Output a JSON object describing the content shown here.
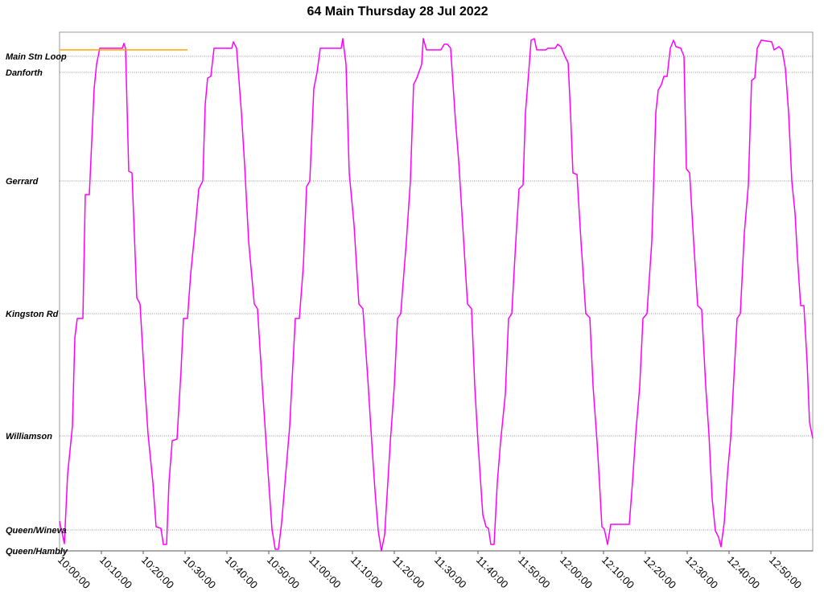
{
  "chart_data": {
    "type": "line",
    "title": "64 Main Thursday 28 Jul 2022",
    "xlim": [
      "10:00:00",
      "13:00:00"
    ],
    "xticks": [
      "10:00:00",
      "10:10:00",
      "10:20:00",
      "10:30:00",
      "10:40:00",
      "10:50:00",
      "11:00:00",
      "11:10:00",
      "11:20:00",
      "11:30:00",
      "11:40:00",
      "11:50:00",
      "12:00:00",
      "12:10:00",
      "12:20:00",
      "12:30:00",
      "12:40:00",
      "12:50:00"
    ],
    "ylim": [
      0,
      6.45
    ],
    "grid": true,
    "stops": [
      {
        "name": "Main Stn Loop",
        "y": 6.15
      },
      {
        "name": "Danforth",
        "y": 5.95
      },
      {
        "name": "Gerrard",
        "y": 4.6
      },
      {
        "name": "Kingston Rd",
        "y": 2.95
      },
      {
        "name": "Williamson",
        "y": 1.43
      },
      {
        "name": "Queen/Wineva",
        "y": 0.26
      },
      {
        "name": "Queen/Hambly",
        "y": 0.0
      }
    ],
    "series": [
      {
        "color": "#ff00ff",
        "points": [
          [
            "10:00:00",
            0.37
          ],
          [
            "10:01:09",
            0.09
          ],
          [
            "10:01:55",
            0.95
          ],
          [
            "10:03:05",
            1.55
          ],
          [
            "10:03:39",
            2.65
          ],
          [
            "10:04:14",
            2.89
          ],
          [
            "10:05:35",
            2.89
          ],
          [
            "10:06:09",
            4.43
          ],
          [
            "10:07:07",
            4.43
          ],
          [
            "10:08:16",
            5.75
          ],
          [
            "10:08:51",
            6.05
          ],
          [
            "10:09:37",
            6.25
          ],
          [
            "10:15:00",
            6.25
          ],
          [
            "10:15:23",
            6.31
          ],
          [
            "10:15:46",
            6.25
          ],
          [
            "10:16:32",
            4.72
          ],
          [
            "10:17:18",
            4.7
          ],
          [
            "10:18:28",
            3.15
          ],
          [
            "10:19:14",
            3.07
          ],
          [
            "10:20:23",
            2.05
          ],
          [
            "10:21:09",
            1.45
          ],
          [
            "10:22:18",
            0.85
          ],
          [
            "10:23:05",
            0.3
          ],
          [
            "10:24:14",
            0.28
          ],
          [
            "10:24:48",
            0.08
          ],
          [
            "10:25:35",
            0.08
          ],
          [
            "10:26:09",
            0.85
          ],
          [
            "10:26:55",
            1.37
          ],
          [
            "10:28:05",
            1.39
          ],
          [
            "10:29:02",
            2.25
          ],
          [
            "10:29:37",
            2.89
          ],
          [
            "10:30:35",
            2.89
          ],
          [
            "10:31:21",
            3.45
          ],
          [
            "10:32:30",
            4.05
          ],
          [
            "10:33:16",
            4.5
          ],
          [
            "10:34:14",
            4.6
          ],
          [
            "10:34:48",
            5.55
          ],
          [
            "10:35:23",
            5.88
          ],
          [
            "10:36:09",
            5.9
          ],
          [
            "10:36:55",
            6.25
          ],
          [
            "10:41:09",
            6.25
          ],
          [
            "10:41:32",
            6.33
          ],
          [
            "10:42:18",
            6.25
          ],
          [
            "10:43:28",
            5.45
          ],
          [
            "10:44:14",
            4.8
          ],
          [
            "10:45:12",
            3.85
          ],
          [
            "10:46:32",
            3.07
          ],
          [
            "10:47:18",
            3.01
          ],
          [
            "10:48:28",
            2.05
          ],
          [
            "10:49:14",
            1.45
          ],
          [
            "10:50:00",
            0.85
          ],
          [
            "10:50:46",
            0.27
          ],
          [
            "10:51:32",
            0.02
          ],
          [
            "10:52:18",
            0.02
          ],
          [
            "10:53:05",
            0.35
          ],
          [
            "10:54:02",
            0.95
          ],
          [
            "10:55:00",
            1.55
          ],
          [
            "10:56:21",
            2.89
          ],
          [
            "10:57:18",
            2.89
          ],
          [
            "10:58:16",
            3.55
          ],
          [
            "10:59:02",
            4.53
          ],
          [
            "10:59:48",
            4.6
          ],
          [
            "11:00:46",
            5.75
          ],
          [
            "11:01:32",
            5.95
          ],
          [
            "11:02:18",
            6.25
          ],
          [
            "11:07:18",
            6.25
          ],
          [
            "11:07:42",
            6.37
          ],
          [
            "11:08:28",
            6.05
          ],
          [
            "11:09:14",
            4.7
          ],
          [
            "11:10:23",
            4.05
          ],
          [
            "11:11:32",
            3.07
          ],
          [
            "11:12:30",
            3.01
          ],
          [
            "11:13:39",
            2.15
          ],
          [
            "11:14:37",
            1.35
          ],
          [
            "11:15:23",
            0.75
          ],
          [
            "11:16:09",
            0.25
          ],
          [
            "11:16:55",
            0.0
          ],
          [
            "11:17:42",
            0.2
          ],
          [
            "11:19:02",
            1.35
          ],
          [
            "11:20:00",
            2.05
          ],
          [
            "11:20:46",
            2.89
          ],
          [
            "11:21:32",
            2.95
          ],
          [
            "11:22:53",
            3.85
          ],
          [
            "11:23:51",
            4.6
          ],
          [
            "11:24:37",
            5.8
          ],
          [
            "11:25:23",
            5.88
          ],
          [
            "11:26:32",
            6.05
          ],
          [
            "11:26:55",
            6.37
          ],
          [
            "11:27:42",
            6.23
          ],
          [
            "11:31:09",
            6.23
          ],
          [
            "11:31:55",
            6.3
          ],
          [
            "11:32:42",
            6.3
          ],
          [
            "11:33:28",
            6.25
          ],
          [
            "11:34:37",
            5.35
          ],
          [
            "11:35:23",
            4.85
          ],
          [
            "11:36:21",
            4.05
          ],
          [
            "11:37:30",
            3.07
          ],
          [
            "11:38:28",
            3.01
          ],
          [
            "11:39:14",
            2.05
          ],
          [
            "11:40:00",
            1.35
          ],
          [
            "11:41:09",
            0.45
          ],
          [
            "11:41:55",
            0.3
          ],
          [
            "11:42:30",
            0.28
          ],
          [
            "11:43:05",
            0.08
          ],
          [
            "11:43:51",
            0.08
          ],
          [
            "11:44:37",
            0.85
          ],
          [
            "11:45:23",
            1.35
          ],
          [
            "11:46:32",
            1.95
          ],
          [
            "11:47:18",
            2.89
          ],
          [
            "11:48:05",
            2.95
          ],
          [
            "11:49:02",
            3.85
          ],
          [
            "11:49:48",
            4.5
          ],
          [
            "11:50:46",
            4.55
          ],
          [
            "11:51:21",
            5.45
          ],
          [
            "11:52:07",
            5.95
          ],
          [
            "11:52:42",
            6.35
          ],
          [
            "11:53:28",
            6.37
          ],
          [
            "11:54:02",
            6.23
          ],
          [
            "11:56:09",
            6.23
          ],
          [
            "11:56:44",
            6.25
          ],
          [
            "11:58:28",
            6.25
          ],
          [
            "11:59:02",
            6.3
          ],
          [
            "11:59:48",
            6.27
          ],
          [
            "12:00:46",
            6.15
          ],
          [
            "12:01:32",
            6.07
          ],
          [
            "12:02:07",
            5.45
          ],
          [
            "12:02:42",
            4.7
          ],
          [
            "12:03:39",
            4.68
          ],
          [
            "12:04:37",
            3.85
          ],
          [
            "12:05:46",
            2.95
          ],
          [
            "12:06:44",
            2.9
          ],
          [
            "12:07:30",
            2.05
          ],
          [
            "12:08:28",
            1.35
          ],
          [
            "12:09:02",
            0.85
          ],
          [
            "12:09:37",
            0.3
          ],
          [
            "12:10:12",
            0.27
          ],
          [
            "12:10:58",
            0.08
          ],
          [
            "12:11:44",
            0.33
          ],
          [
            "12:16:09",
            0.33
          ],
          [
            "12:16:55",
            0.85
          ],
          [
            "12:17:42",
            1.45
          ],
          [
            "12:18:39",
            2.05
          ],
          [
            "12:19:25",
            2.89
          ],
          [
            "12:20:23",
            2.95
          ],
          [
            "12:21:32",
            3.85
          ],
          [
            "12:22:30",
            5.45
          ],
          [
            "12:23:05",
            5.73
          ],
          [
            "12:23:51",
            5.8
          ],
          [
            "12:24:25",
            5.9
          ],
          [
            "12:25:12",
            5.9
          ],
          [
            "12:25:58",
            6.25
          ],
          [
            "12:26:44",
            6.35
          ],
          [
            "12:27:18",
            6.27
          ],
          [
            "12:28:28",
            6.25
          ],
          [
            "12:29:14",
            6.15
          ],
          [
            "12:29:48",
            4.75
          ],
          [
            "12:30:35",
            4.7
          ],
          [
            "12:31:32",
            3.85
          ],
          [
            "12:32:30",
            3.05
          ],
          [
            "12:33:28",
            3.0
          ],
          [
            "12:34:25",
            2.05
          ],
          [
            "12:35:12",
            1.45
          ],
          [
            "12:35:58",
            0.65
          ],
          [
            "12:36:44",
            0.25
          ],
          [
            "12:37:30",
            0.17
          ],
          [
            "12:38:05",
            0.05
          ],
          [
            "12:38:51",
            0.35
          ],
          [
            "12:39:37",
            0.95
          ],
          [
            "12:40:23",
            1.4
          ],
          [
            "12:41:09",
            2.15
          ],
          [
            "12:41:55",
            2.89
          ],
          [
            "12:42:42",
            2.95
          ],
          [
            "12:43:39",
            3.95
          ],
          [
            "12:44:37",
            4.55
          ],
          [
            "12:45:23",
            5.85
          ],
          [
            "12:46:09",
            5.88
          ],
          [
            "12:46:44",
            6.25
          ],
          [
            "12:47:42",
            6.35
          ],
          [
            "12:50:12",
            6.33
          ],
          [
            "12:50:46",
            6.23
          ],
          [
            "12:51:55",
            6.27
          ],
          [
            "12:52:42",
            6.23
          ],
          [
            "12:53:28",
            6.0
          ],
          [
            "12:54:14",
            5.45
          ],
          [
            "12:55:00",
            4.6
          ],
          [
            "12:55:46",
            4.2
          ],
          [
            "12:56:21",
            3.65
          ],
          [
            "12:57:07",
            3.05
          ],
          [
            "12:57:53",
            3.05
          ],
          [
            "12:58:39",
            2.35
          ],
          [
            "12:59:14",
            1.6
          ],
          [
            "13:00:00",
            1.4
          ]
        ]
      },
      {
        "color": "#ffa500",
        "points": [
          [
            "10:00:00",
            6.23
          ],
          [
            "10:30:35",
            6.23
          ]
        ]
      }
    ]
  }
}
